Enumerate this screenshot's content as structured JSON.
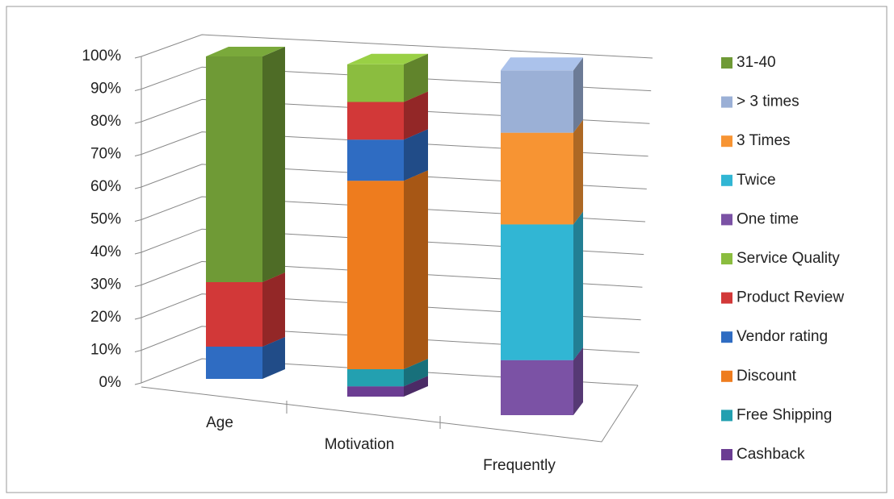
{
  "chart_data": {
    "type": "bar3d_stacked",
    "categories": [
      "Age",
      "Motivation",
      "Frequently"
    ],
    "series": [
      {
        "name": "Cashback",
        "color": "#6b3d92",
        "values": [
          null,
          3,
          null
        ]
      },
      {
        "name": "Free Shipping",
        "color": "#23a0b0",
        "values": [
          null,
          5,
          null
        ]
      },
      {
        "name": "Discount",
        "color": "#ee7c1e",
        "values": [
          null,
          55,
          null
        ]
      },
      {
        "name": "Vendor rating",
        "color": "#2f6cc2",
        "values": [
          10,
          12,
          null
        ]
      },
      {
        "name": "Product Review",
        "color": "#d23838",
        "values": [
          20,
          11,
          null
        ]
      },
      {
        "name": "Service Quality",
        "color": "#8bbd3f",
        "values": [
          null,
          11,
          null
        ]
      },
      {
        "name": "One time",
        "color": "#7b52a5",
        "values": [
          null,
          null,
          15
        ]
      },
      {
        "name": "Twice",
        "color": "#31b6d4",
        "values": [
          null,
          null,
          37
        ]
      },
      {
        "name": "3 Times",
        "color": "#f79433",
        "values": [
          null,
          null,
          25
        ]
      },
      {
        "name": "> 3 times",
        "color": "#9bb0d6",
        "values": [
          null,
          null,
          17
        ]
      },
      {
        "name": "31-40",
        "color": "#6f9a36",
        "values": [
          70,
          null,
          null
        ]
      }
    ],
    "ylim": [
      0,
      100
    ],
    "yticks": [
      {
        "value": 0,
        "label": "0%"
      },
      {
        "value": 10,
        "label": "10%"
      },
      {
        "value": 20,
        "label": "20%"
      },
      {
        "value": 30,
        "label": "30%"
      },
      {
        "value": 40,
        "label": "40%"
      },
      {
        "value": 50,
        "label": "50%"
      },
      {
        "value": 60,
        "label": "60%"
      },
      {
        "value": 70,
        "label": "70%"
      },
      {
        "value": 80,
        "label": "80%"
      },
      {
        "value": 90,
        "label": "90%"
      },
      {
        "value": 100,
        "label": "100%"
      }
    ],
    "grid": true,
    "legend": "right"
  }
}
